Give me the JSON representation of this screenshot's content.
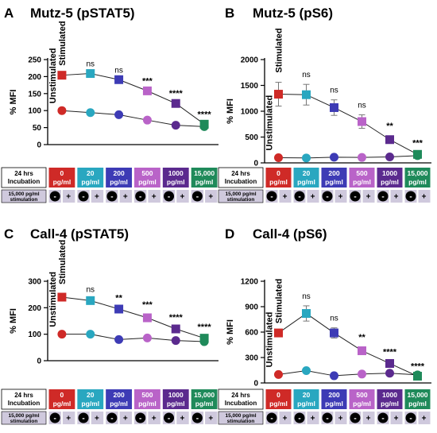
{
  "figure": {
    "dose_labels": [
      [
        "0",
        "pg/ml"
      ],
      [
        "20",
        "pg/ml"
      ],
      [
        "200",
        "pg/ml"
      ],
      [
        "500",
        "pg/ml"
      ],
      [
        "1000",
        "pg/ml"
      ],
      [
        "15,000",
        "pg/ml"
      ]
    ],
    "dose_colors": [
      "#cf2a27",
      "#29a7c0",
      "#3d3bb5",
      "#b963c8",
      "#5b2a8e",
      "#1f8a5a"
    ],
    "incubation_label": [
      "24 hrs",
      "Incubation"
    ],
    "stim_label": [
      "15,000 pg/ml",
      "stimulation"
    ],
    "minus_glyph": "-",
    "plus_glyph": "+",
    "unstim_tag": "Unstimulated",
    "stim_tag": "Stimulated"
  },
  "chart_data": [
    {
      "panel": "A",
      "title": "Mutz-5 (pSTAT5)",
      "type": "line",
      "ylabel": "% MFI",
      "ylim": [
        0,
        250
      ],
      "yticks": [
        0,
        50,
        100,
        150,
        200,
        250
      ],
      "ytick_labels": [
        "0",
        "50",
        "100",
        "150",
        "200",
        "250"
      ],
      "categories": [
        "0 pg/ml",
        "20 pg/ml",
        "200 pg/ml",
        "500 pg/ml",
        "1000 pg/ml",
        "15,000 pg/ml"
      ],
      "series": [
        {
          "values": [
            100,
            94,
            88,
            72,
            57,
            53
          ],
          "errors": [
            0,
            0,
            0,
            0,
            0,
            0
          ],
          "marker": "circle"
        },
        {
          "values": [
            204,
            209,
            191,
            158,
            121,
            60
          ],
          "errors": [
            0,
            0,
            0,
            0,
            0,
            0
          ],
          "marker": "square"
        }
      ],
      "annotations": [
        "",
        "ns",
        "ns",
        "***",
        "****",
        "****"
      ]
    },
    {
      "panel": "B",
      "title": "Mutz-5 (pS6)",
      "type": "line",
      "ylabel": "% MFI",
      "ylim": [
        0,
        2000
      ],
      "yticks": [
        0,
        500,
        1000,
        1500,
        2000
      ],
      "ytick_labels": [
        "0",
        "500",
        "1000",
        "1500",
        "2000"
      ],
      "categories": [
        "0 pg/ml",
        "20 pg/ml",
        "200 pg/ml",
        "500 pg/ml",
        "1000 pg/ml",
        "15,000 pg/ml"
      ],
      "series": [
        {
          "values": [
            100,
            95,
            110,
            105,
            115,
            140
          ],
          "errors": [
            0,
            0,
            0,
            0,
            0,
            0
          ],
          "marker": "circle"
        },
        {
          "values": [
            1330,
            1320,
            1070,
            800,
            450,
            165
          ],
          "errors": [
            230,
            200,
            150,
            130,
            70,
            30
          ],
          "marker": "square"
        }
      ],
      "annotations": [
        "",
        "ns",
        "ns",
        "ns",
        "**",
        "***"
      ]
    },
    {
      "panel": "C",
      "title": "Call-4 (pSTAT5)",
      "type": "line",
      "ylabel": "% MFI",
      "ylim": [
        0,
        300
      ],
      "yticks": [
        0,
        100,
        200,
        300
      ],
      "ytick_labels": [
        "0",
        "100",
        "200",
        "300"
      ],
      "categories": [
        "0 pg/ml",
        "20 pg/ml",
        "200 pg/ml",
        "500 pg/ml",
        "1000 pg/ml",
        "15,000 pg/ml"
      ],
      "series": [
        {
          "values": [
            100,
            100,
            80,
            86,
            76,
            72
          ],
          "errors": [
            0,
            0,
            0,
            0,
            0,
            0
          ],
          "marker": "circle"
        },
        {
          "values": [
            240,
            227,
            195,
            162,
            120,
            85
          ],
          "errors": [
            12,
            6,
            5,
            12,
            6,
            5
          ],
          "marker": "square"
        }
      ],
      "annotations": [
        "",
        "ns",
        "**",
        "***",
        "****",
        "****"
      ]
    },
    {
      "panel": "D",
      "title": "Call-4 (pS6)",
      "type": "line",
      "ylabel": "% MFI",
      "ylim": [
        0,
        1200
      ],
      "yticks": [
        0,
        300,
        600,
        900,
        1200
      ],
      "ytick_labels": [
        "0",
        "300",
        "600",
        "900",
        "1200"
      ],
      "categories": [
        "0 pg/ml",
        "20 pg/ml",
        "200 pg/ml",
        "500 pg/ml",
        "1000 pg/ml",
        "15,000 pg/ml"
      ],
      "series": [
        {
          "values": [
            100,
            145,
            85,
            105,
            115,
            95
          ],
          "errors": [
            0,
            0,
            0,
            0,
            0,
            0
          ],
          "marker": "circle"
        },
        {
          "values": [
            590,
            820,
            590,
            380,
            230,
            80
          ],
          "errors": [
            0,
            90,
            60,
            40,
            20,
            0
          ],
          "marker": "square"
        }
      ],
      "annotations": [
        "",
        "ns",
        "ns",
        "**",
        "****",
        "****"
      ]
    }
  ]
}
